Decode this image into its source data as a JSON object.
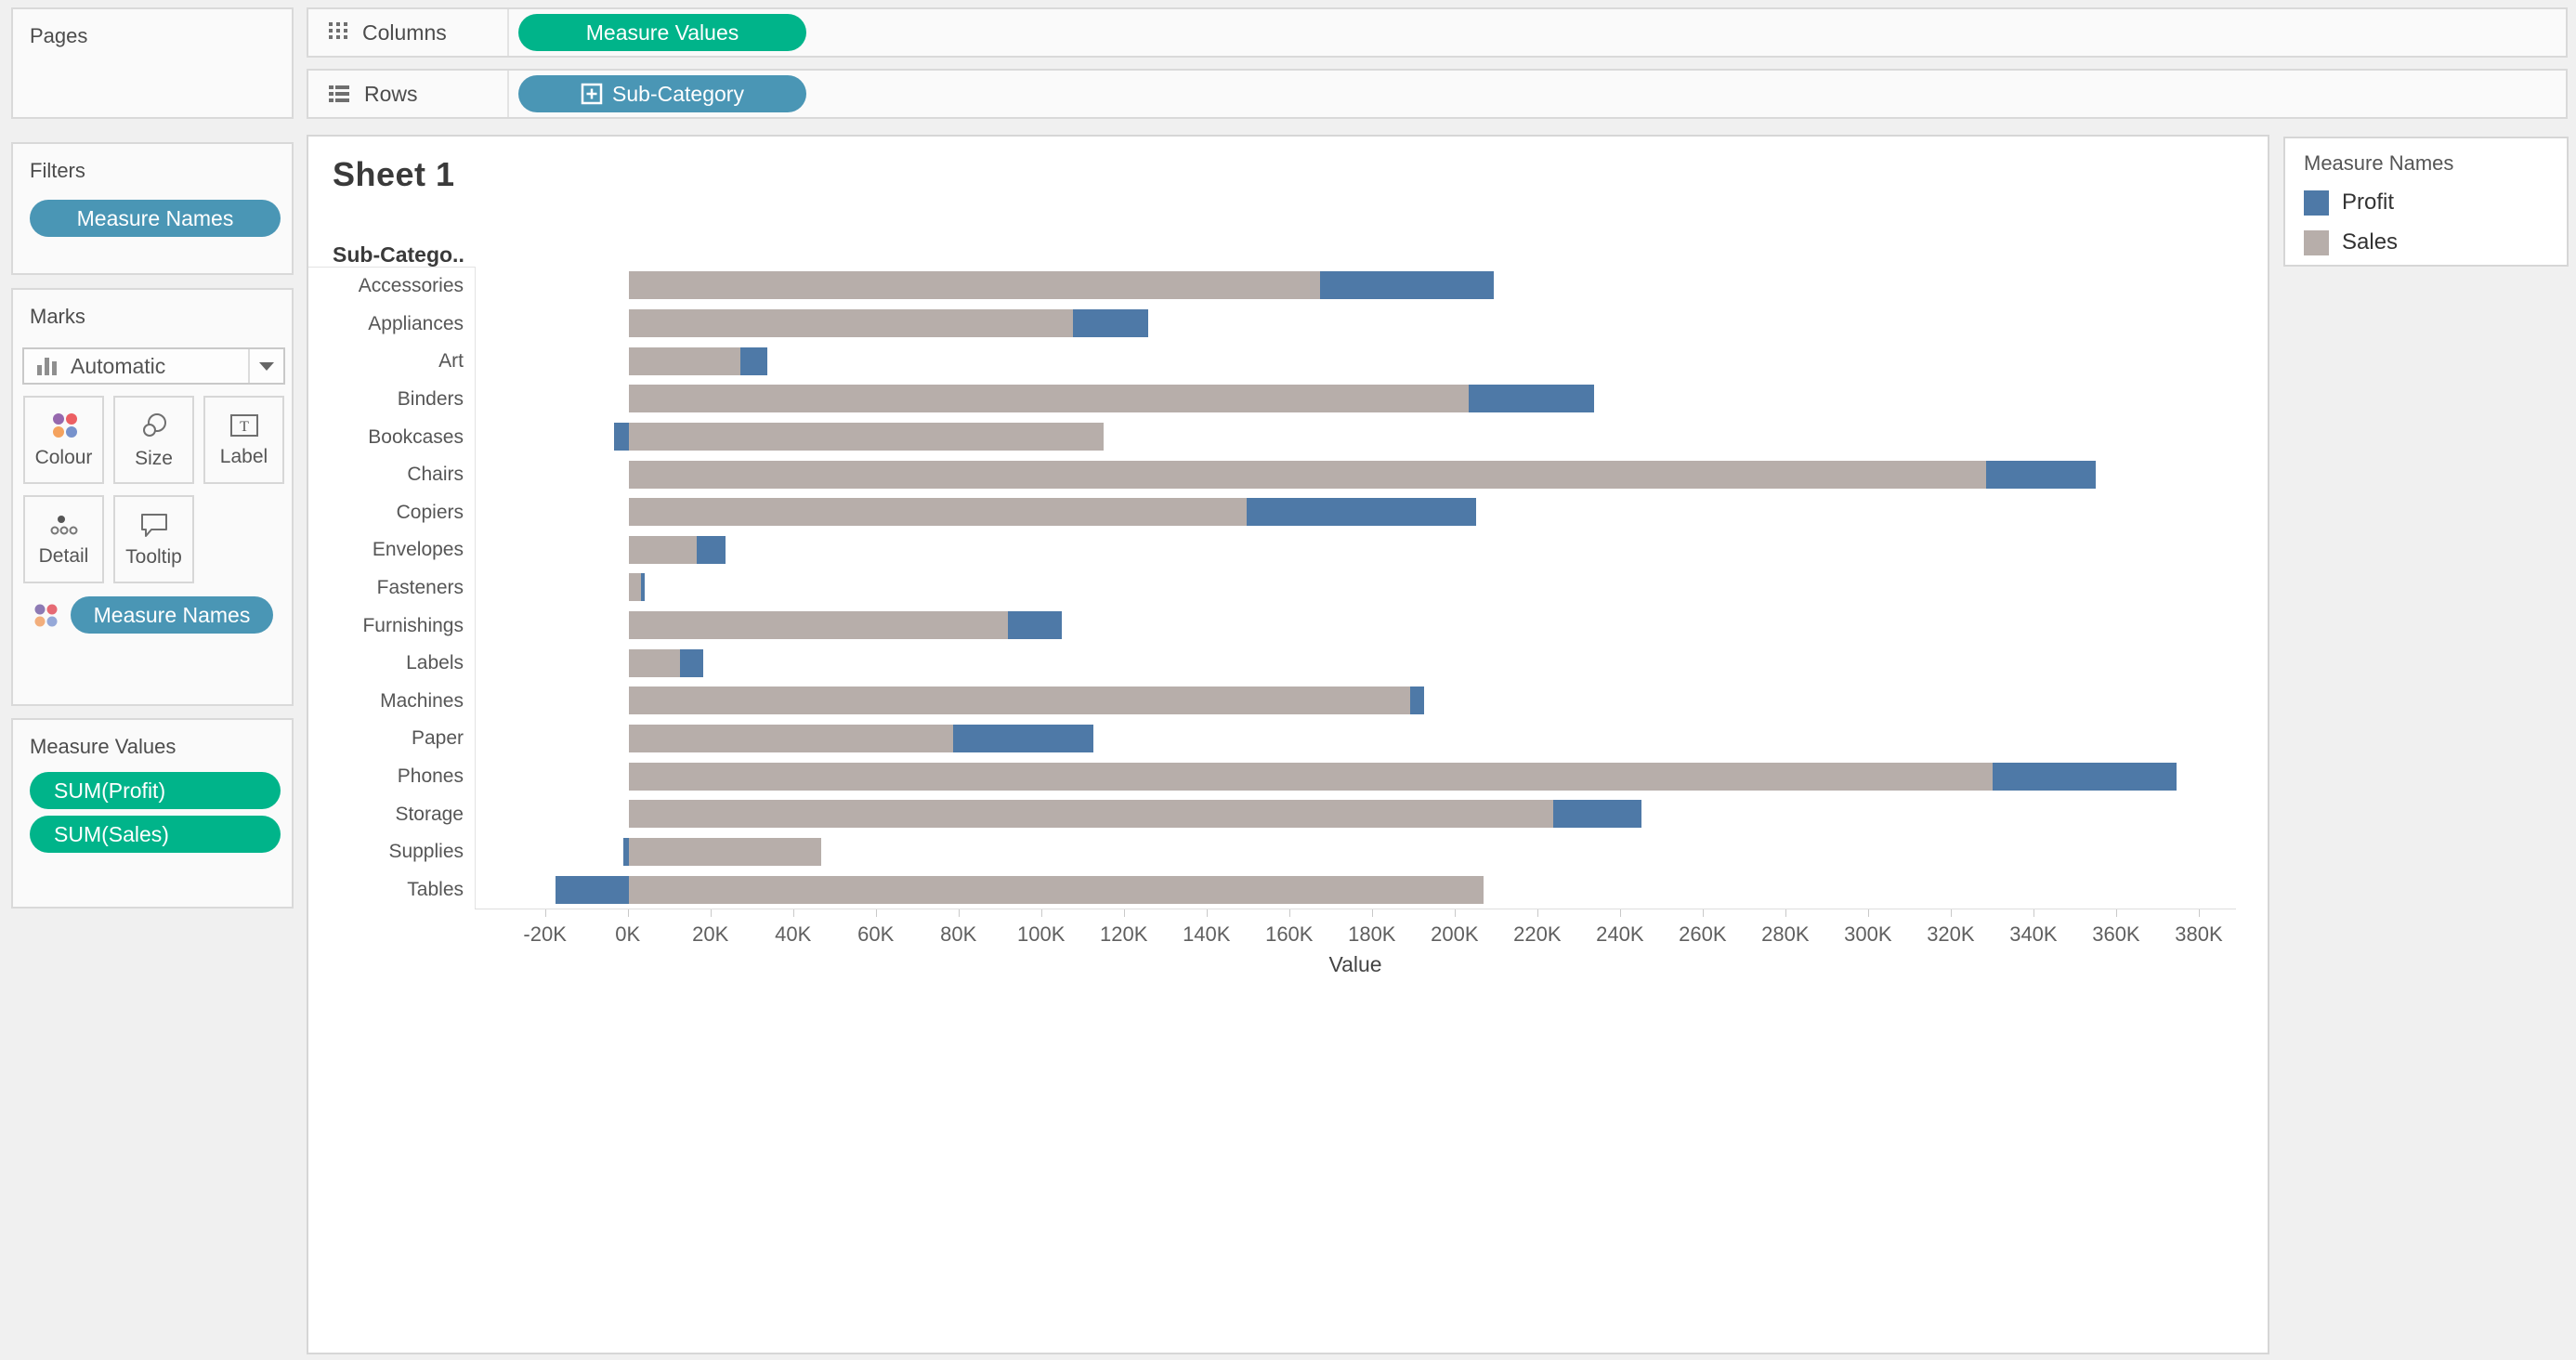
{
  "shelves": {
    "columns_label": "Columns",
    "columns_pill": "Measure Values",
    "rows_label": "Rows",
    "rows_pill": "Sub-Category"
  },
  "panels": {
    "pages_title": "Pages",
    "filters_title": "Filters",
    "filters_pill": "Measure Names",
    "marks_title": "Marks",
    "marks_type_selector": "Automatic",
    "marks_buttons": {
      "colour": "Colour",
      "size": "Size",
      "label": "Label",
      "detail": "Detail",
      "tooltip": "Tooltip"
    },
    "marks_pill": "Measure Names",
    "measure_values_title": "Measure Values",
    "measure_values_pills": [
      "SUM(Profit)",
      "SUM(Sales)"
    ]
  },
  "chart": {
    "title": "Sheet 1",
    "row_header": "Sub-Catego..",
    "axis_title": "Value"
  },
  "legend": {
    "title": "Measure Names",
    "items": [
      {
        "label": "Profit",
        "color": "#4e79a7"
      },
      {
        "label": "Sales",
        "color": "#b7aeaa"
      }
    ]
  },
  "colors": {
    "bar_profit": "#4e79a7",
    "bar_sales": "#b7aeaa",
    "pill_green": "#00b48a",
    "pill_blue": "#4a96b5"
  },
  "chart_data": {
    "type": "bar",
    "orientation": "horizontal",
    "stacked": true,
    "title": "Sheet 1",
    "xlabel": "Value",
    "ylabel": "Sub-Category",
    "legend_position": "top-right",
    "grid": false,
    "categories": [
      "Accessories",
      "Appliances",
      "Art",
      "Binders",
      "Bookcases",
      "Chairs",
      "Copiers",
      "Envelopes",
      "Fasteners",
      "Furnishings",
      "Labels",
      "Machines",
      "Paper",
      "Phones",
      "Storage",
      "Supplies",
      "Tables"
    ],
    "series": [
      {
        "name": "Sales",
        "color": "#b7aeaa",
        "values": [
          167380,
          107532,
          27119,
          203413,
          114880,
          328449,
          149528,
          16476,
          3024,
          91705,
          12486,
          189239,
          78479,
          330007,
          223844,
          46674,
          206966
        ]
      },
      {
        "name": "Profit",
        "color": "#4e79a7",
        "values": [
          41937,
          18138,
          6528,
          30222,
          -3473,
          26590,
          55618,
          6964,
          950,
          13059,
          5546,
          3385,
          34054,
          44516,
          21279,
          -1189,
          -17725
        ]
      }
    ],
    "axis": {
      "min": -37000,
      "max": 389000
    },
    "ticks": {
      "values": [
        -20000,
        0,
        20000,
        40000,
        60000,
        80000,
        100000,
        120000,
        140000,
        160000,
        180000,
        200000,
        220000,
        240000,
        260000,
        280000,
        300000,
        320000,
        340000,
        360000,
        380000
      ],
      "labels": [
        "-20K",
        "0K",
        "20K",
        "40K",
        "60K",
        "80K",
        "100K",
        "120K",
        "140K",
        "160K",
        "180K",
        "200K",
        "220K",
        "240K",
        "260K",
        "280K",
        "300K",
        "320K",
        "340K",
        "360K",
        "380K"
      ]
    }
  }
}
